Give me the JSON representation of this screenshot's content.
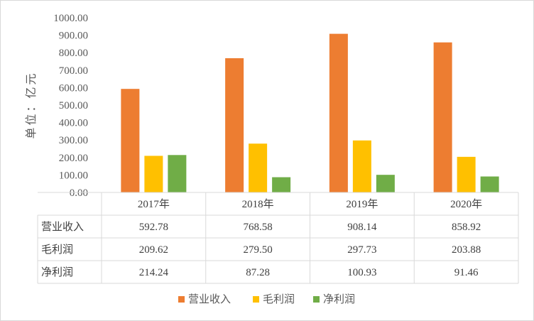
{
  "chart_data": {
    "type": "bar",
    "ylabel": "单位：亿元",
    "ylim": [
      0,
      1000
    ],
    "yticks": [
      "0.00",
      "100.00",
      "200.00",
      "300.00",
      "400.00",
      "500.00",
      "600.00",
      "700.00",
      "800.00",
      "900.00",
      "1000.00"
    ],
    "categories": [
      "2017年",
      "2018年",
      "2019年",
      "2020年"
    ],
    "series": [
      {
        "name": "营业收入",
        "color": "#ed7d31",
        "values": [
          592.78,
          768.58,
          908.14,
          858.92
        ],
        "labels": [
          "592.78",
          "768.58",
          "908.14",
          "858.92"
        ]
      },
      {
        "name": "毛利润",
        "color": "#ffc000",
        "values": [
          209.62,
          279.5,
          297.73,
          203.88
        ],
        "labels": [
          "209.62",
          "279.50",
          "297.73",
          "203.88"
        ]
      },
      {
        "name": "净利润",
        "color": "#70ad47",
        "values": [
          214.24,
          87.28,
          100.93,
          91.46
        ],
        "labels": [
          "214.24",
          "87.28",
          "100.93",
          "91.46"
        ]
      }
    ],
    "legend": "bottom",
    "grid": false,
    "data_table": true
  }
}
